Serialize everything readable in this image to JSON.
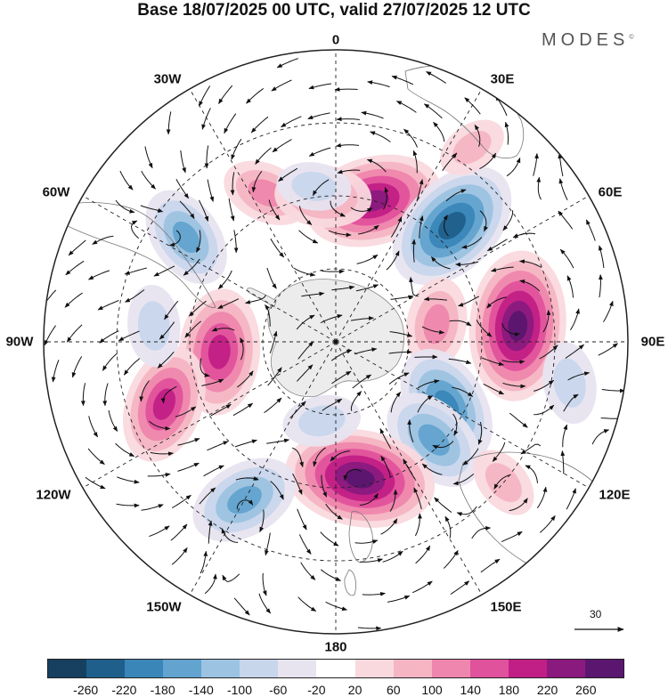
{
  "title": "Base 18/07/2025 00 UTC, valid 27/07/2025 12 UTC",
  "brand": "MODES",
  "brand_mark": "©",
  "longitude_labels": {
    "lon_0": "0",
    "lon_30e": "30E",
    "lon_60e": "60E",
    "lon_90e": "90E",
    "lon_120e": "120E",
    "lon_150e": "150E",
    "lon_180": "180",
    "lon_150w": "150W",
    "lon_120w": "120W",
    "lon_90w": "90W",
    "lon_60w": "60W",
    "lon_30w": "30W"
  },
  "reference_vector": "30",
  "colorbar": {
    "colors": [
      "#173f5f",
      "#1f5f8b",
      "#3a86b8",
      "#62a3cf",
      "#9cc3e2",
      "#c8d6ec",
      "#e7e4f0",
      "#ffffff",
      "#f9d9de",
      "#f5b5c3",
      "#ef86ad",
      "#e0529c",
      "#c21f86",
      "#8a1a7e",
      "#5b1670"
    ],
    "ticks": [
      "-260",
      "-220",
      "-180",
      "-140",
      "-100",
      "-60",
      "-20",
      "20",
      "60",
      "100",
      "140",
      "180",
      "220",
      "260"
    ]
  },
  "anomalies": [
    {
      "id": "pos-west-central-africa-s",
      "lat": -50,
      "lon": 15,
      "value": 240
    },
    {
      "id": "neg-south-africa",
      "lat": -45,
      "lon": 45,
      "value": -250
    },
    {
      "id": "pos-south-indian",
      "lat": -40,
      "lon": 85,
      "value": 275
    },
    {
      "id": "pos-east-antarctic-small",
      "lat": -62,
      "lon": 80,
      "value": 120
    },
    {
      "id": "neg-southern-ocean-110e",
      "lat": -55,
      "lon": 120,
      "value": -200
    },
    {
      "id": "neg-australia-sw",
      "lat": -52,
      "lon": 135,
      "value": -170
    },
    {
      "id": "pos-new-zealand",
      "lat": -52,
      "lon": 170,
      "value": 275
    },
    {
      "id": "neg-pacific-145w",
      "lat": -40,
      "lon": -150,
      "value": -170
    },
    {
      "id": "pos-amundsen",
      "lat": -58,
      "lon": -95,
      "value": 210
    },
    {
      "id": "pos-pacific-105w",
      "lat": -40,
      "lon": -110,
      "value": 190
    },
    {
      "id": "neg-south-america",
      "lat": -40,
      "lon": -55,
      "value": -150
    },
    {
      "id": "pos-atlantic-25w",
      "lat": -45,
      "lon": -25,
      "value": 110
    },
    {
      "id": "pos-atlantic-0",
      "lat": -50,
      "lon": -5,
      "value": 130
    },
    {
      "id": "neg-atlantic-small",
      "lat": -47,
      "lon": -8,
      "value": -70
    },
    {
      "id": "pos-africa-east-weak",
      "lat": -25,
      "lon": 35,
      "value": 60
    },
    {
      "id": "neg-indian-100e",
      "lat": -25,
      "lon": 100,
      "value": -90
    },
    {
      "id": "pos-australia-e",
      "lat": -30,
      "lon": 130,
      "value": 70
    },
    {
      "id": "neg-pacific-80w",
      "lat": -40,
      "lon": -85,
      "value": -90
    },
    {
      "id": "neg-ross-small",
      "lat": -68,
      "lon": -170,
      "value": -80
    }
  ]
}
